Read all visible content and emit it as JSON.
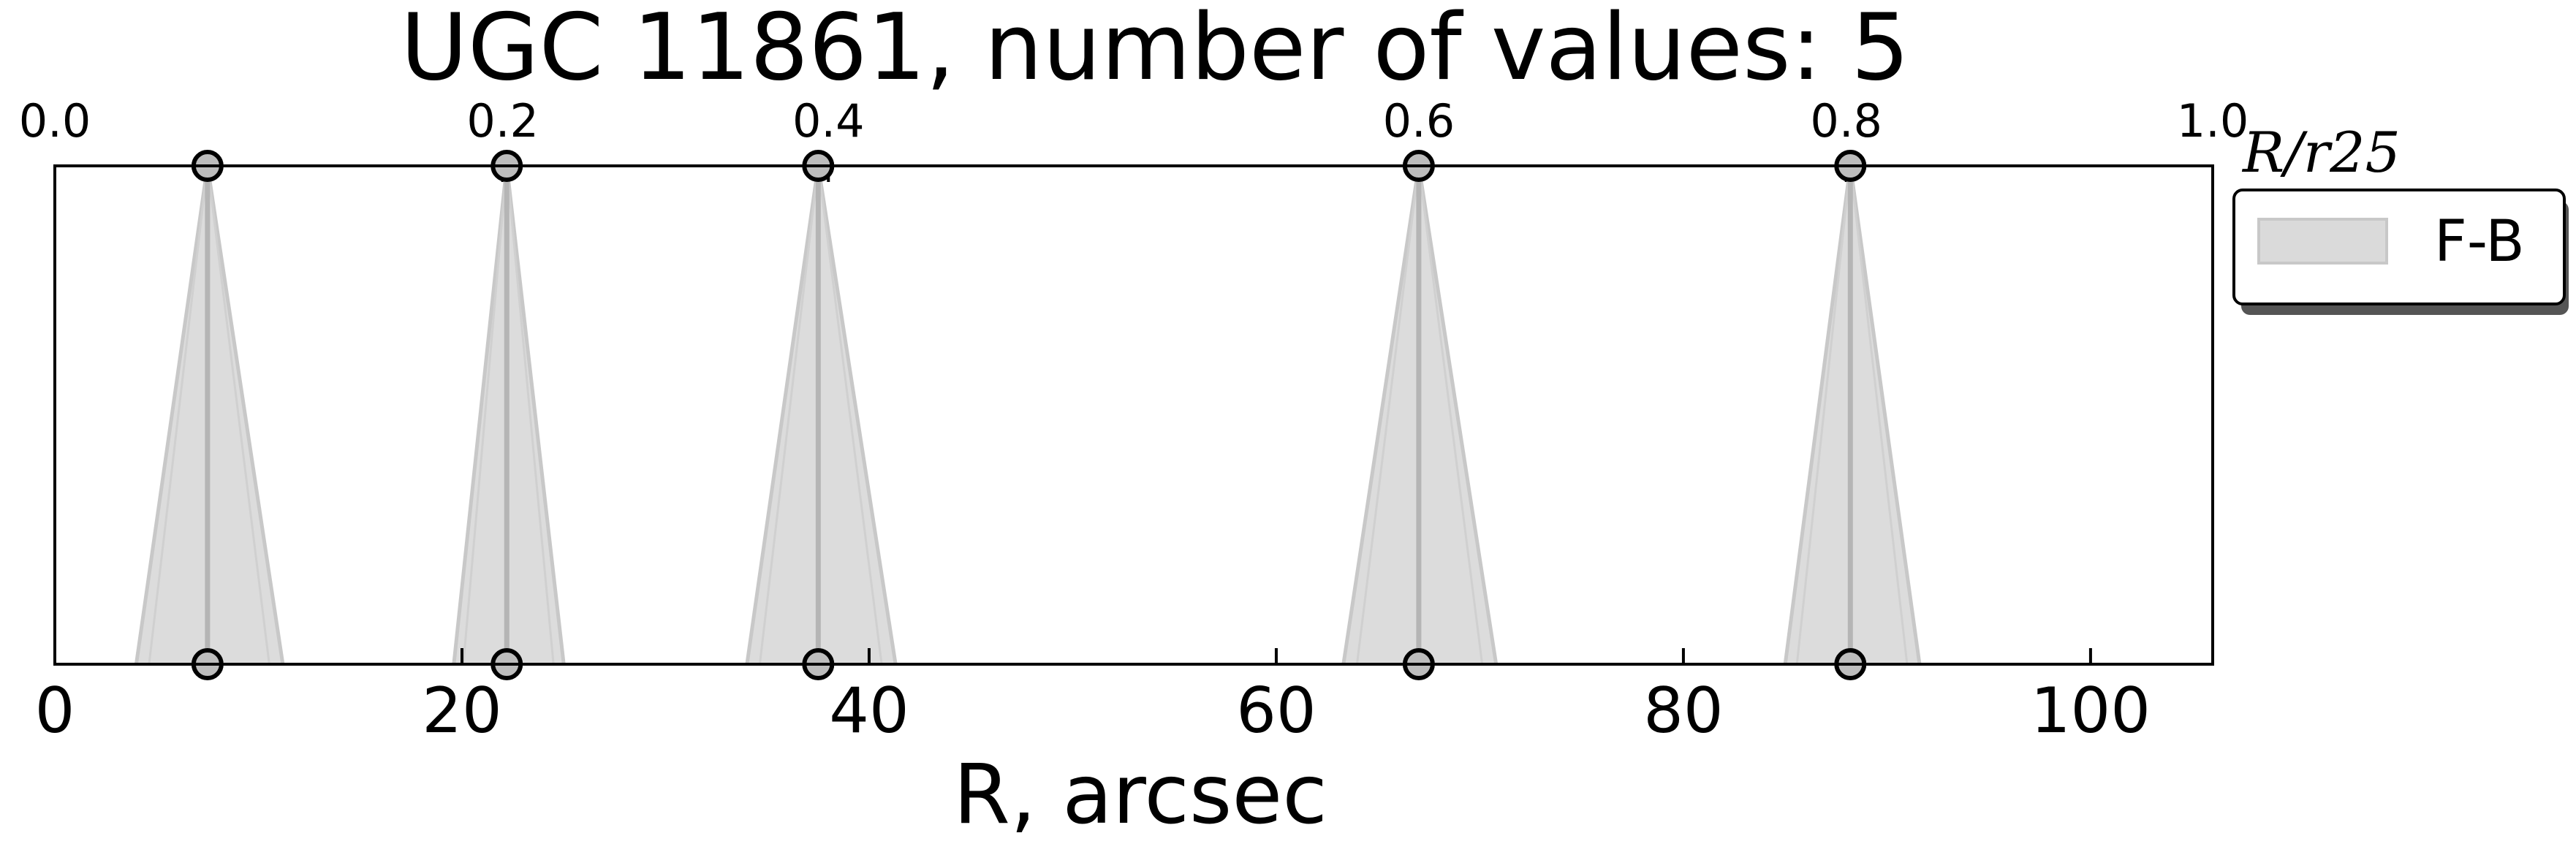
{
  "chart_data": {
    "type": "scatter",
    "title": "UGC 11861, number of values: 5",
    "xlabel": "R, arcsec",
    "xlabel_top": "R/r25",
    "xlim": [
      0,
      106
    ],
    "x_ticks": [
      0,
      20,
      40,
      60,
      80,
      100
    ],
    "x_top_ticks": [
      0.0,
      0.2,
      0.4,
      0.6,
      0.8,
      1.0
    ],
    "x_top_tick_labels": [
      "0.0",
      "0.2",
      "0.4",
      "0.6",
      "0.8",
      "1.0"
    ],
    "x_top_tick_positions": [
      0,
      22,
      38,
      67,
      88,
      106
    ],
    "legend_position": "right",
    "grid": false,
    "series": [
      {
        "name": "F-B",
        "color": "#d3d3d3",
        "points": [
          {
            "x": 7.5,
            "x_low": 4.0,
            "x_high": 11.2
          },
          {
            "x": 22.2,
            "x_low": 19.6,
            "x_high": 25.0
          },
          {
            "x": 37.5,
            "x_low": 34.0,
            "x_high": 41.3
          },
          {
            "x": 67.0,
            "x_low": 63.3,
            "x_high": 70.8
          },
          {
            "x": 88.2,
            "x_low": 85.0,
            "x_high": 91.6
          }
        ]
      }
    ]
  }
}
